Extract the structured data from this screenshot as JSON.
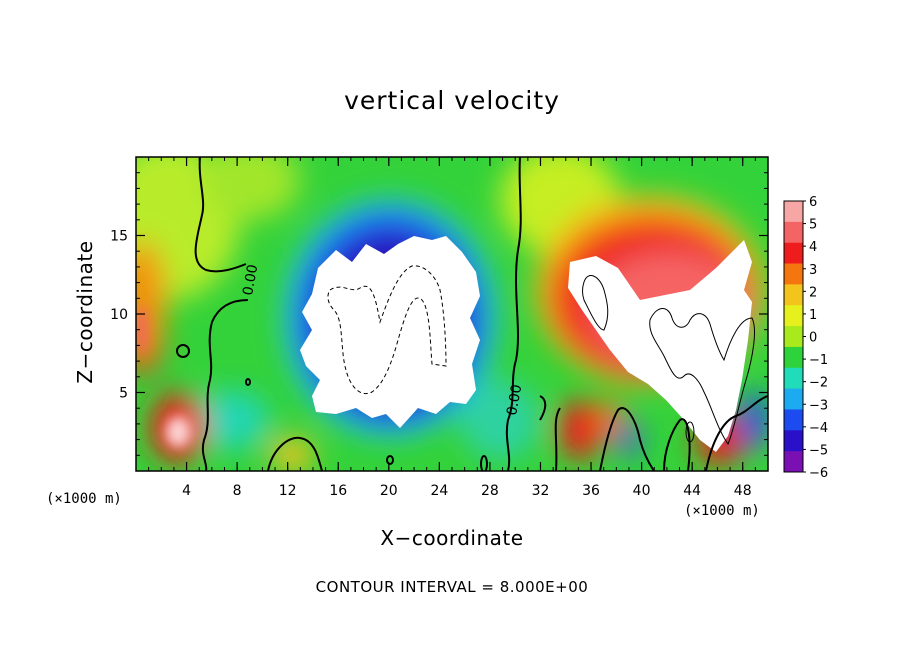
{
  "chart_data": {
    "type": "heatmap",
    "title": "vertical velocity",
    "xlabel": "X−coordinate",
    "ylabel": "Z−coordinate",
    "x_unit": "(×1000 m)",
    "xlim": [
      0,
      50
    ],
    "ylim": [
      0,
      20
    ],
    "x_ticks": [
      4,
      8,
      12,
      16,
      20,
      24,
      28,
      32,
      36,
      40,
      44,
      48
    ],
    "y_ticks": [
      5,
      10,
      15
    ],
    "colorbar": {
      "labels": [
        "6",
        "5",
        "4",
        "3",
        "2",
        "1",
        "0",
        "−1",
        "−2",
        "−3",
        "−4",
        "−5",
        "−6"
      ],
      "values": [
        6,
        5,
        4,
        3,
        2,
        1,
        0,
        -1,
        -2,
        -3,
        -4,
        -5,
        -6
      ],
      "colors": [
        "#f7a6a6",
        "#f56464",
        "#ee1c1c",
        "#f5760e",
        "#f2c41c",
        "#e6f01c",
        "#a8ea1c",
        "#2ed23a",
        "#20dcb8",
        "#1caaf0",
        "#1c4cf0",
        "#2a10c8",
        "#7a10b4"
      ]
    },
    "contour_interval": 8.0,
    "footer": "CONTOUR INTERVAL = 8.000E+00",
    "contour_labels": [
      "0.00",
      "0.00"
    ],
    "features": [
      {
        "name": "downdraft core (< −6)",
        "cx": 19.5,
        "cz": 9.5,
        "rx": 6.5,
        "rz": 6.5
      },
      {
        "name": "updraft core (> 6)",
        "cx": 44,
        "cz": 9,
        "rx": 6,
        "rz": 6
      },
      {
        "name": "low-level updraft",
        "cx": 3,
        "cz": 2.5,
        "rx": 1.5,
        "rz": 2
      }
    ]
  }
}
